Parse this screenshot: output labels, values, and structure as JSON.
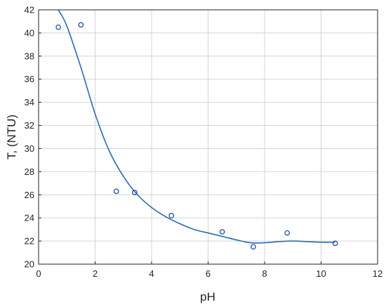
{
  "chart_data": {
    "type": "scatter",
    "title": "",
    "xlabel": "pH",
    "ylabel": "T, (NTU)",
    "xlim": [
      0,
      12
    ],
    "ylim": [
      20,
      42
    ],
    "xticks": [
      0,
      2,
      4,
      6,
      8,
      10,
      12
    ],
    "yticks": [
      20,
      22,
      24,
      26,
      28,
      30,
      32,
      34,
      36,
      38,
      40,
      42
    ],
    "grid": true,
    "points": {
      "x": [
        0.7,
        1.5,
        2.75,
        3.4,
        4.7,
        6.5,
        7.6,
        8.8,
        10.5
      ],
      "y": [
        40.5,
        40.7,
        26.3,
        26.2,
        24.2,
        22.8,
        21.5,
        22.7,
        21.8
      ]
    },
    "fit_curve": {
      "x": [
        0.7,
        1.0,
        1.5,
        2.0,
        2.5,
        3.0,
        3.5,
        4.0,
        4.5,
        5.0,
        5.5,
        6.0,
        6.5,
        7.0,
        7.5,
        8.0,
        8.5,
        9.0,
        9.5,
        10.0,
        10.5
      ],
      "y": [
        42.0,
        40.6,
        37.0,
        33.0,
        29.8,
        27.6,
        26.0,
        24.9,
        24.1,
        23.5,
        23.0,
        22.7,
        22.4,
        22.1,
        21.85,
        21.85,
        21.95,
        22.0,
        21.95,
        21.9,
        21.9
      ]
    },
    "colors": {
      "series": "#1f4ea8",
      "curve": "#2a6bb0"
    }
  }
}
